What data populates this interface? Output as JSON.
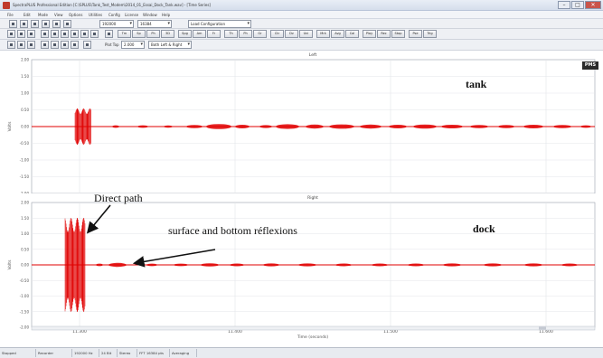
{
  "window": {
    "title": "SpectraPLUS Professional Edition [C:\\SPLUS\\Tank_Test_Modem\\2014_01_Essai_Dock_Tank.wav] - [Time Series]",
    "minimize": "–",
    "maximize": "□",
    "close": "✕"
  },
  "menu": [
    "File",
    "Edit",
    "Mode",
    "View",
    "Options",
    "Utilities",
    "Config",
    "License",
    "Window",
    "Help"
  ],
  "toolbar": {
    "sample_rate": "192000",
    "fft_size": "16384",
    "config": "Load Configuration",
    "buttons_row2": [
      "Tm",
      "Sp",
      "Ph",
      "3D",
      "Spg",
      "Am",
      "Fr",
      "Th",
      "Ph",
      "Gr",
      "Ctr",
      "Dv",
      "Uni",
      "Mrk",
      "Avg",
      "Cal",
      "Play",
      "Rec",
      "Stop",
      "Pse",
      "Trig"
    ],
    "filter_top_value": "2.000",
    "filter_top_label": "Plot Top",
    "channel_select": "Both Left & Right"
  },
  "plot": {
    "top_panel_label": "Left",
    "bottom_panel_label": "Right",
    "y_label": "Volts",
    "x_label": "Time (seconds)",
    "y_ticks": [
      "2.00",
      "1.50",
      "1.00",
      "0.50",
      "0.00",
      "-0.50",
      "-1.00",
      "-1.50",
      "-2.00"
    ],
    "x_ticks": [
      "11.300",
      "11.400",
      "11.500",
      "11.600"
    ],
    "badge": "PMS",
    "trace_color": "#e00000"
  },
  "annotations": {
    "tank": "tank",
    "dock": "dock",
    "direct_path": "Direct path",
    "surface_bottom": "surface and bottom réflexions"
  },
  "status": [
    "Stopped",
    "Recorder",
    "192000 Hz",
    "24 Bit",
    "Stereo",
    "FFT 16384 pts",
    "Averaging"
  ]
}
